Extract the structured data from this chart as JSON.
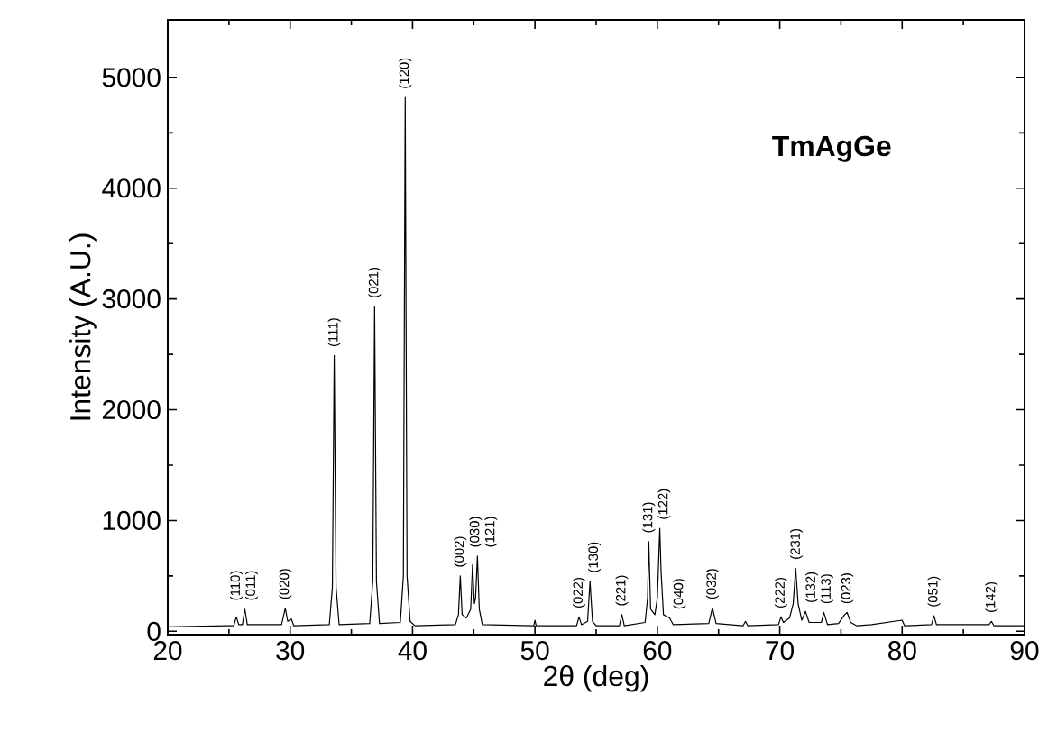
{
  "chart_data": {
    "type": "line",
    "xlabel": "2θ (deg)",
    "ylabel": "Intensity (A.U.)",
    "color": "#000000",
    "xlim": [
      20,
      90
    ],
    "ylim": [
      -30,
      5520
    ],
    "xticks": [
      20,
      30,
      40,
      50,
      60,
      70,
      80,
      90
    ],
    "yticks": [
      0,
      1000,
      2000,
      3000,
      4000,
      5000
    ],
    "x": [
      20,
      24.8,
      25.4,
      25.6,
      25.8,
      26.1,
      26.3,
      26.5,
      29.3,
      29.6,
      29.8,
      30.1,
      30.3,
      33.2,
      33.45,
      33.6,
      33.75,
      34.0,
      36.5,
      36.75,
      36.9,
      37.05,
      37.3,
      39.0,
      39.25,
      39.4,
      39.55,
      39.8,
      40.2,
      43.5,
      43.75,
      43.9,
      44.05,
      44.4,
      44.75,
      44.9,
      45.05,
      45.15,
      45.3,
      45.45,
      45.7,
      49.9,
      50.0,
      50.1,
      53.4,
      53.6,
      53.8,
      54.3,
      54.5,
      54.7,
      55.0,
      56.9,
      57.1,
      57.3,
      59.0,
      59.2,
      59.3,
      59.45,
      59.8,
      60.0,
      60.2,
      60.3,
      60.5,
      61.0,
      61.3,
      64.2,
      64.5,
      64.8,
      67.0,
      67.2,
      67.4,
      69.9,
      70.1,
      70.3,
      70.8,
      71.1,
      71.3,
      71.5,
      71.8,
      72.1,
      72.4,
      73.4,
      73.6,
      73.9,
      74.8,
      75.3,
      75.5,
      75.8,
      76.3,
      77.5,
      80.0,
      80.2,
      82.4,
      82.6,
      82.8,
      87.1,
      87.3,
      87.5,
      90
    ],
    "values": [
      40,
      50,
      50,
      130,
      60,
      60,
      200,
      60,
      60,
      210,
      90,
      110,
      50,
      60,
      400,
      2490,
      400,
      60,
      70,
      450,
      2930,
      450,
      70,
      80,
      500,
      4820,
      500,
      90,
      50,
      60,
      150,
      500,
      150,
      120,
      200,
      600,
      250,
      300,
      680,
      200,
      60,
      50,
      100,
      50,
      50,
      130,
      60,
      90,
      450,
      90,
      50,
      50,
      150,
      50,
      80,
      300,
      810,
      200,
      150,
      300,
      930,
      550,
      150,
      120,
      60,
      70,
      210,
      70,
      50,
      90,
      50,
      60,
      130,
      80,
      120,
      250,
      570,
      250,
      100,
      180,
      80,
      80,
      170,
      60,
      70,
      150,
      170,
      80,
      50,
      60,
      100,
      50,
      60,
      140,
      60,
      60,
      90,
      50,
      50
    ],
    "annotations": [
      "TmAgGe",
      {
        "text": "(110)",
        "x": 25.6,
        "y": 130
      },
      {
        "text": "(011)",
        "x": 26.3,
        "y": 200
      },
      {
        "text": "(020)",
        "x": 29.6,
        "y": 210
      },
      {
        "text": "(111)",
        "x": 33.6,
        "y": 2490
      },
      {
        "text": "(021)",
        "x": 36.9,
        "y": 2930
      },
      {
        "text": "(120)",
        "x": 39.4,
        "y": 4820
      },
      {
        "text": "(002)",
        "x": 43.9,
        "y": 500
      },
      {
        "text": "(030)",
        "x": 44.9,
        "y": 600
      },
      {
        "text": "(121)",
        "x": 45.3,
        "y": 680
      },
      {
        "text": "(022)",
        "x": 53.6,
        "y": 130
      },
      {
        "text": "(130)",
        "x": 54.5,
        "y": 450
      },
      {
        "text": "(221)",
        "x": 57.1,
        "y": 150
      },
      {
        "text": "(131)",
        "x": 59.3,
        "y": 810
      },
      {
        "text": "(122)",
        "x": 60.2,
        "y": 930
      },
      {
        "text": "(040)",
        "x": 61.0,
        "y": 120
      },
      {
        "text": "(032)",
        "x": 64.5,
        "y": 210
      },
      {
        "text": "(222)",
        "x": 70.1,
        "y": 130
      },
      {
        "text": "(231)",
        "x": 71.3,
        "y": 570
      },
      {
        "text": "(132)",
        "x": 72.1,
        "y": 180
      },
      {
        "text": "(113)",
        "x": 73.6,
        "y": 170
      },
      {
        "text": "(023)",
        "x": 75.5,
        "y": 170
      },
      {
        "text": "(051)",
        "x": 82.6,
        "y": 140
      },
      {
        "text": "(142)",
        "x": 87.3,
        "y": 90
      }
    ]
  }
}
